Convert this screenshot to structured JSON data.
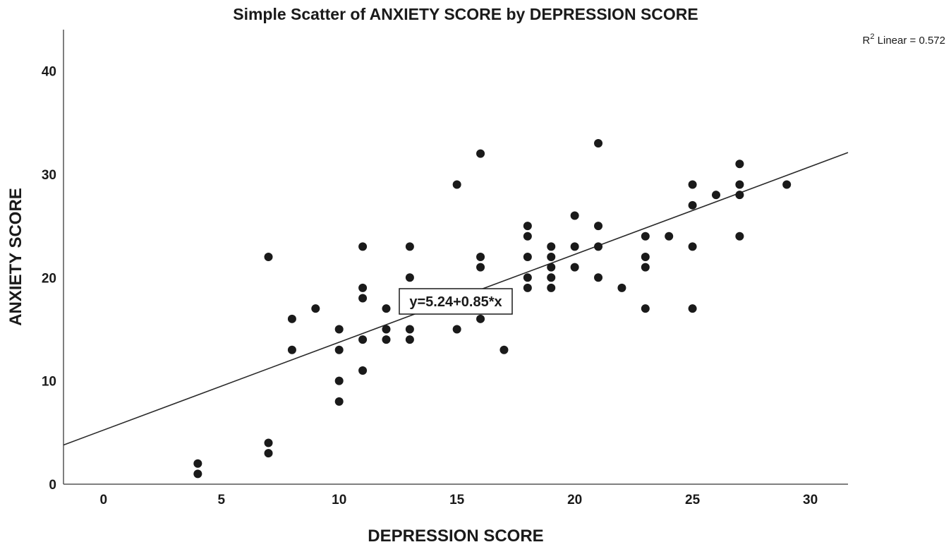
{
  "chart_data": {
    "type": "scatter",
    "title": "Simple Scatter of ANXIETY SCORE by DEPRESSION SCORE",
    "xlabel": "DEPRESSION SCORE",
    "ylabel": "ANXIETY SCORE",
    "xlim": [
      -1.7,
      31.6
    ],
    "ylim": [
      0,
      44
    ],
    "x_ticks": [
      0,
      5,
      10,
      15,
      20,
      25,
      30
    ],
    "y_ticks": [
      0,
      10,
      20,
      30,
      40
    ],
    "grid": false,
    "fit_line": {
      "type": "linear",
      "intercept": 5.24,
      "slope": 0.85,
      "equation_label": "y=5.24+0.85*x",
      "r2_prefix": "R",
      "r2_sup": "2",
      "r2_text": " Linear = 0.572"
    },
    "point_color": "#1a1a1a",
    "line_color": "#2a2a2a",
    "points": [
      {
        "x": 4,
        "y": 2
      },
      {
        "x": 4,
        "y": 1
      },
      {
        "x": 7,
        "y": 22
      },
      {
        "x": 7,
        "y": 4
      },
      {
        "x": 7,
        "y": 3
      },
      {
        "x": 8,
        "y": 16
      },
      {
        "x": 8,
        "y": 13
      },
      {
        "x": 9,
        "y": 17
      },
      {
        "x": 10,
        "y": 15
      },
      {
        "x": 10,
        "y": 13
      },
      {
        "x": 10,
        "y": 10
      },
      {
        "x": 10,
        "y": 8
      },
      {
        "x": 11,
        "y": 23
      },
      {
        "x": 11,
        "y": 19
      },
      {
        "x": 11,
        "y": 18
      },
      {
        "x": 11,
        "y": 14
      },
      {
        "x": 11,
        "y": 11
      },
      {
        "x": 12,
        "y": 17
      },
      {
        "x": 12,
        "y": 15
      },
      {
        "x": 12,
        "y": 14
      },
      {
        "x": 13,
        "y": 23
      },
      {
        "x": 13,
        "y": 20
      },
      {
        "x": 13,
        "y": 15
      },
      {
        "x": 13,
        "y": 14
      },
      {
        "x": 15,
        "y": 29
      },
      {
        "x": 15,
        "y": 15
      },
      {
        "x": 16,
        "y": 32
      },
      {
        "x": 16,
        "y": 22
      },
      {
        "x": 16,
        "y": 21
      },
      {
        "x": 16,
        "y": 16
      },
      {
        "x": 17,
        "y": 13
      },
      {
        "x": 18,
        "y": 25
      },
      {
        "x": 18,
        "y": 24
      },
      {
        "x": 18,
        "y": 22
      },
      {
        "x": 18,
        "y": 20
      },
      {
        "x": 18,
        "y": 19
      },
      {
        "x": 19,
        "y": 23
      },
      {
        "x": 19,
        "y": 22
      },
      {
        "x": 19,
        "y": 21
      },
      {
        "x": 19,
        "y": 20
      },
      {
        "x": 19,
        "y": 19
      },
      {
        "x": 20,
        "y": 26
      },
      {
        "x": 20,
        "y": 23
      },
      {
        "x": 20,
        "y": 21
      },
      {
        "x": 21,
        "y": 33
      },
      {
        "x": 21,
        "y": 25
      },
      {
        "x": 21,
        "y": 23
      },
      {
        "x": 21,
        "y": 20
      },
      {
        "x": 22,
        "y": 19
      },
      {
        "x": 23,
        "y": 24
      },
      {
        "x": 23,
        "y": 22
      },
      {
        "x": 23,
        "y": 21
      },
      {
        "x": 23,
        "y": 17
      },
      {
        "x": 24,
        "y": 24
      },
      {
        "x": 25,
        "y": 29
      },
      {
        "x": 25,
        "y": 27
      },
      {
        "x": 25,
        "y": 23
      },
      {
        "x": 25,
        "y": 17
      },
      {
        "x": 26,
        "y": 28
      },
      {
        "x": 27,
        "y": 31
      },
      {
        "x": 27,
        "y": 29
      },
      {
        "x": 27,
        "y": 28
      },
      {
        "x": 27,
        "y": 24
      },
      {
        "x": 29,
        "y": 29
      }
    ]
  }
}
